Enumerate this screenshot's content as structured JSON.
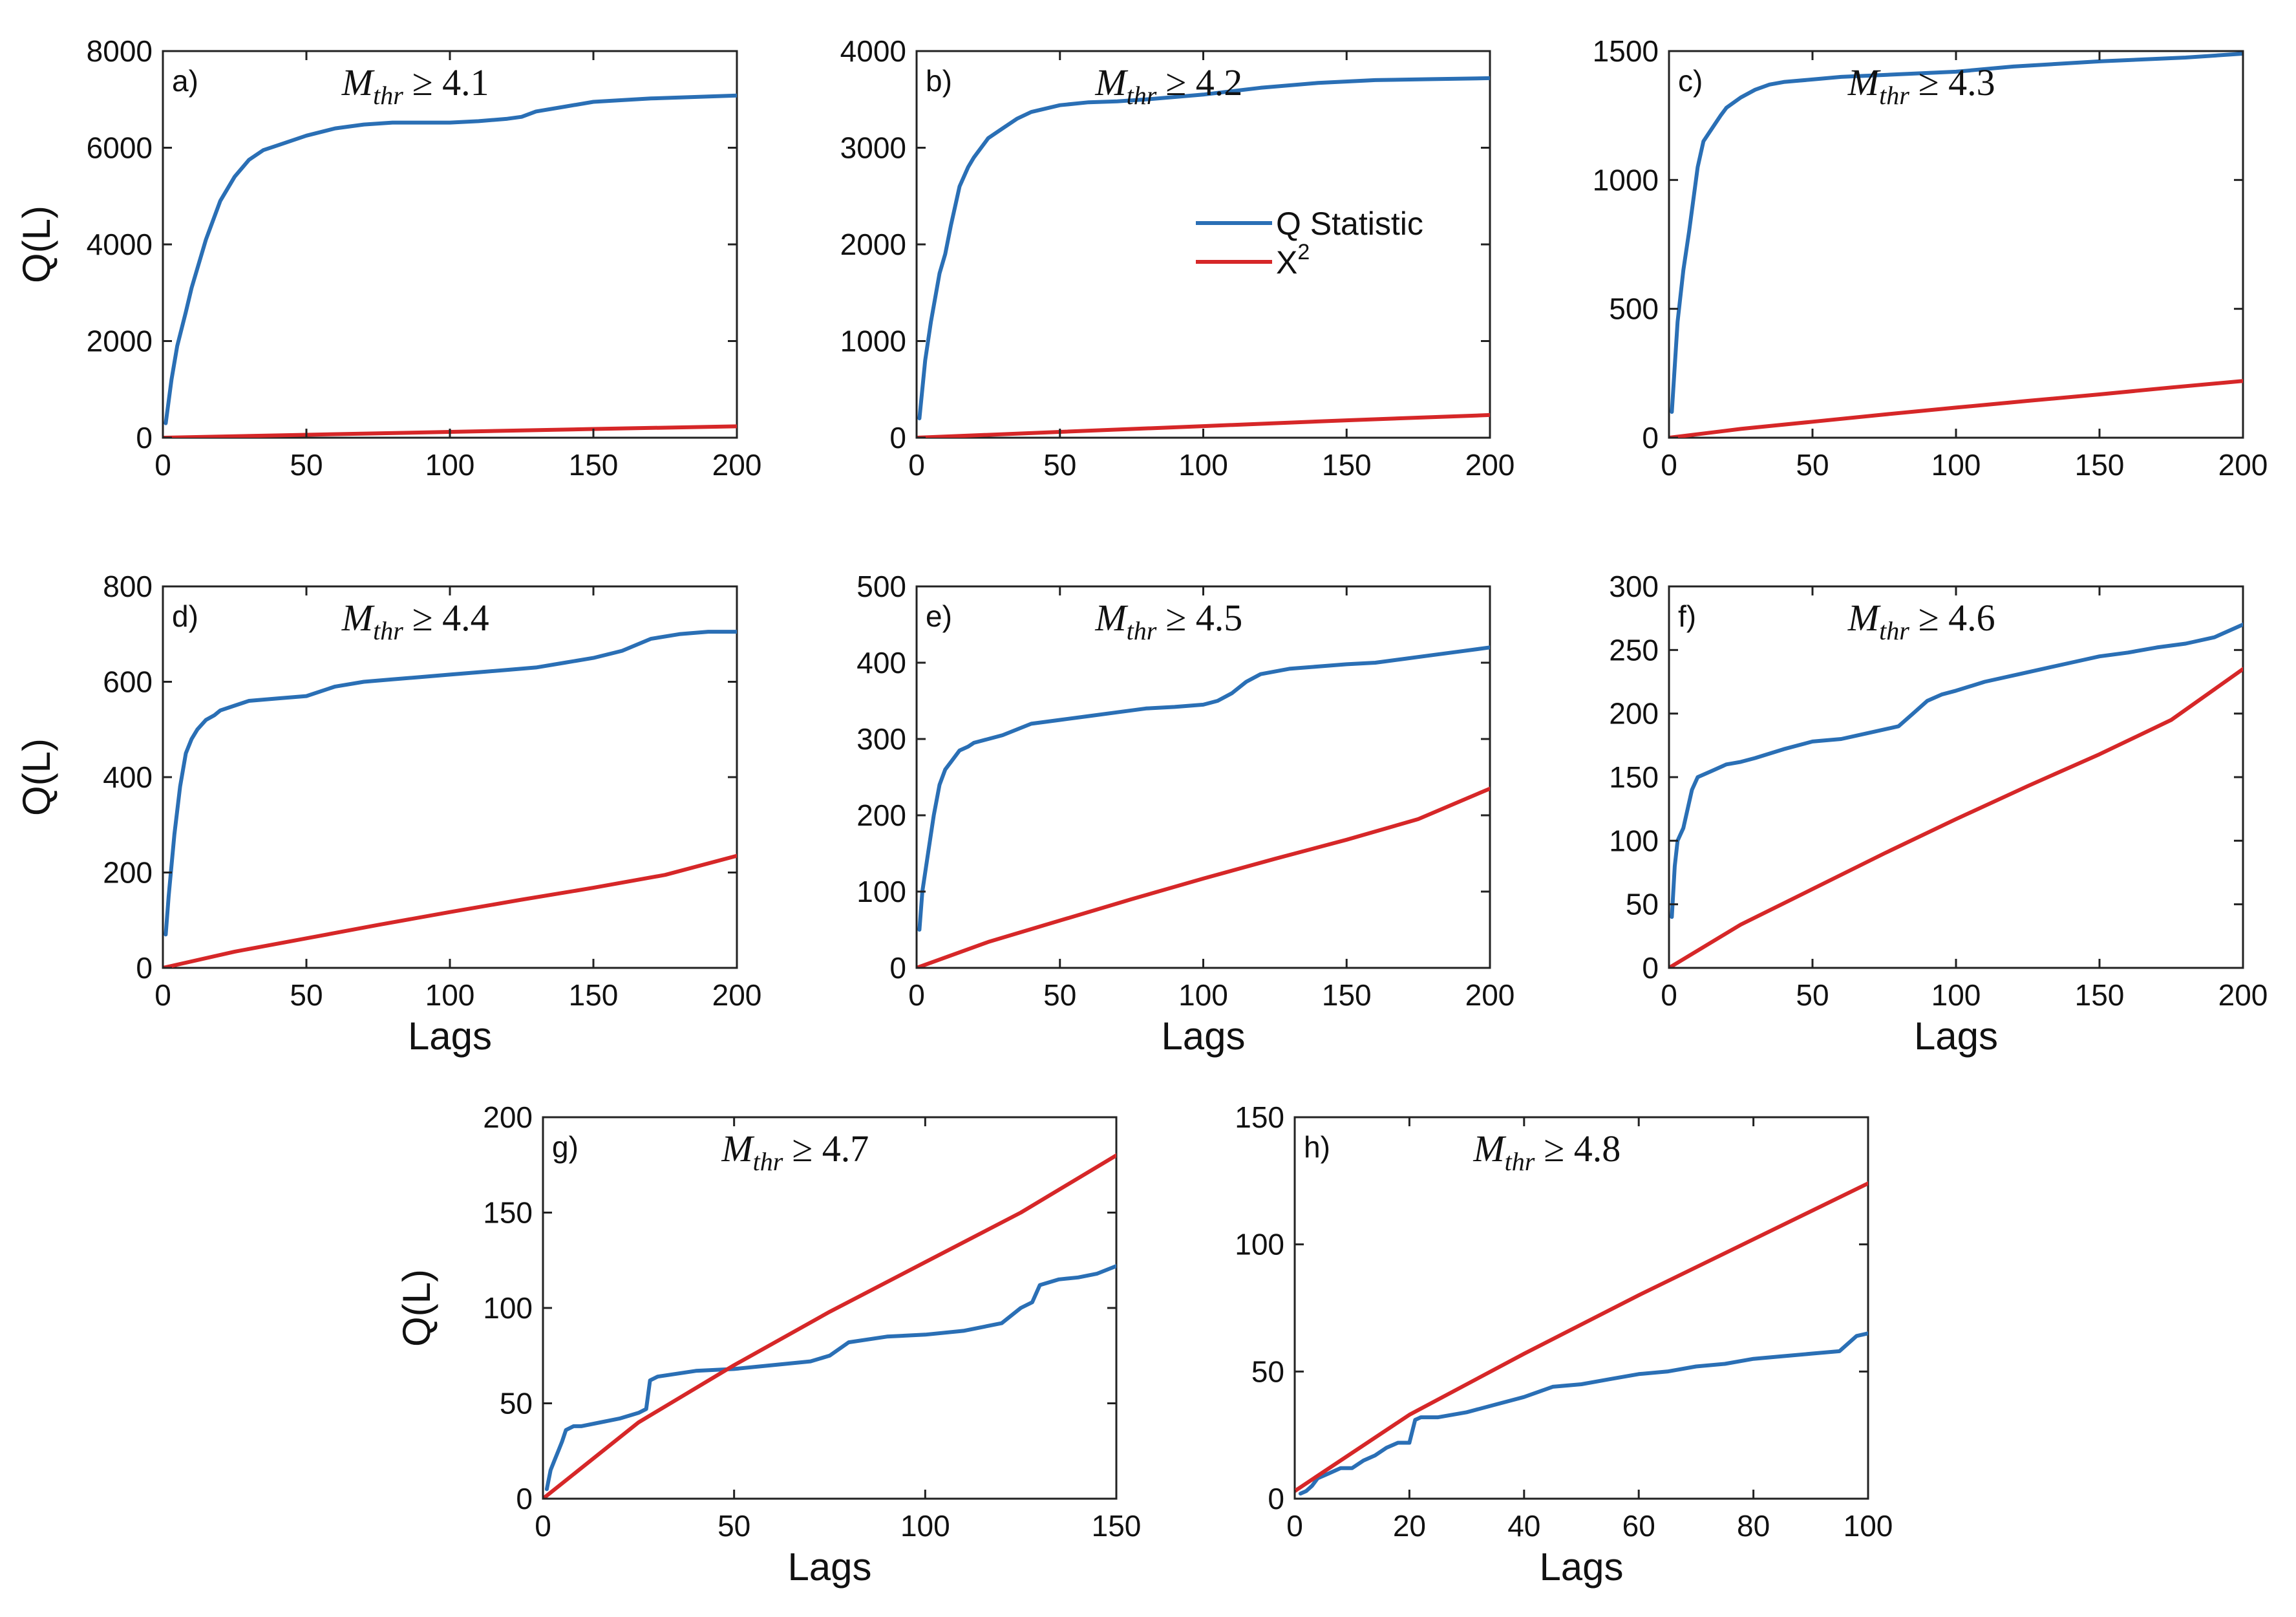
{
  "figure": {
    "colors": {
      "q": "#2a6fb5",
      "chi": "#d62728",
      "axis": "#222222"
    },
    "legend": {
      "q_label": "Q Statistic",
      "chi_label": "X",
      "chi_sup": "2",
      "panel": "b",
      "placement": "center-right"
    }
  },
  "chart_data": [
    {
      "id": "a",
      "type": "line",
      "label": "a)",
      "title": {
        "symbol": "M",
        "sub": "thr",
        "rel": "≥",
        "value": "4.1"
      },
      "xlabel": "",
      "ylabel": "Q(L)",
      "xlim": [
        0,
        200
      ],
      "ylim": [
        0,
        8000
      ],
      "xticks": [
        "0",
        "50",
        "100",
        "150",
        "200"
      ],
      "yticks": [
        "0",
        "2000",
        "4000",
        "6000",
        "8000"
      ],
      "series": [
        {
          "name": "Q Statistic",
          "x": [
            1,
            3,
            5,
            8,
            10,
            15,
            20,
            25,
            30,
            35,
            40,
            50,
            60,
            70,
            80,
            90,
            100,
            110,
            120,
            125,
            130,
            140,
            150,
            170,
            200
          ],
          "y": [
            300,
            1200,
            1900,
            2600,
            3100,
            4100,
            4900,
            5400,
            5750,
            5950,
            6050,
            6250,
            6400,
            6480,
            6520,
            6520,
            6520,
            6550,
            6600,
            6640,
            6750,
            6850,
            6950,
            7020,
            7080
          ]
        },
        {
          "name": "X2",
          "x": [
            0,
            50,
            100,
            150,
            200
          ],
          "y": [
            0,
            60,
            120,
            180,
            235
          ]
        }
      ]
    },
    {
      "id": "b",
      "type": "line",
      "label": "b)",
      "title": {
        "symbol": "M",
        "sub": "thr",
        "rel": "≥",
        "value": "4.2"
      },
      "xlabel": "",
      "ylabel": "",
      "xlim": [
        0,
        200
      ],
      "ylim": [
        0,
        4000
      ],
      "xticks": [
        "0",
        "50",
        "100",
        "150",
        "200"
      ],
      "yticks": [
        "0",
        "1000",
        "2000",
        "3000",
        "4000"
      ],
      "series": [
        {
          "name": "Q Statistic",
          "x": [
            1,
            3,
            5,
            8,
            10,
            12,
            15,
            18,
            20,
            25,
            30,
            35,
            40,
            50,
            60,
            70,
            80,
            100,
            120,
            140,
            160,
            180,
            200
          ],
          "y": [
            200,
            800,
            1200,
            1700,
            1900,
            2200,
            2600,
            2800,
            2900,
            3100,
            3200,
            3300,
            3370,
            3440,
            3470,
            3480,
            3500,
            3550,
            3620,
            3670,
            3700,
            3710,
            3720
          ]
        },
        {
          "name": "X2",
          "x": [
            0,
            50,
            100,
            150,
            200
          ],
          "y": [
            0,
            60,
            120,
            180,
            235
          ]
        }
      ]
    },
    {
      "id": "c",
      "type": "line",
      "label": "c)",
      "title": {
        "symbol": "M",
        "sub": "thr",
        "rel": "≥",
        "value": "4.3"
      },
      "xlabel": "",
      "ylabel": "",
      "xlim": [
        0,
        200
      ],
      "ylim": [
        0,
        1500
      ],
      "xticks": [
        "0",
        "50",
        "100",
        "150",
        "200"
      ],
      "yticks": [
        "0",
        "500",
        "1000",
        "1500"
      ],
      "series": [
        {
          "name": "Q Statistic",
          "x": [
            1,
            3,
            5,
            7,
            10,
            12,
            15,
            18,
            20,
            25,
            30,
            35,
            40,
            50,
            60,
            80,
            100,
            120,
            150,
            180,
            200
          ],
          "y": [
            100,
            450,
            650,
            800,
            1050,
            1150,
            1200,
            1250,
            1280,
            1320,
            1350,
            1370,
            1380,
            1390,
            1400,
            1410,
            1420,
            1440,
            1460,
            1475,
            1490
          ]
        },
        {
          "name": "X2",
          "x": [
            0,
            25,
            50,
            75,
            100,
            125,
            150,
            175,
            200
          ],
          "y": [
            0,
            34,
            62,
            90,
            117,
            143,
            168,
            195,
            220
          ]
        }
      ]
    },
    {
      "id": "d",
      "type": "line",
      "label": "d)",
      "title": {
        "symbol": "M",
        "sub": "thr",
        "rel": "≥",
        "value": "4.4"
      },
      "xlabel": "Lags",
      "ylabel": "Q(L)",
      "xlim": [
        0,
        200
      ],
      "ylim": [
        0,
        800
      ],
      "xticks": [
        "0",
        "50",
        "100",
        "150",
        "200"
      ],
      "yticks": [
        "0",
        "200",
        "400",
        "600",
        "800"
      ],
      "series": [
        {
          "name": "Q Statistic",
          "x": [
            1,
            2,
            4,
            6,
            8,
            10,
            12,
            15,
            18,
            20,
            25,
            30,
            40,
            50,
            60,
            70,
            80,
            90,
            100,
            110,
            120,
            130,
            140,
            150,
            160,
            170,
            180,
            190,
            200
          ],
          "y": [
            70,
            150,
            280,
            380,
            450,
            480,
            500,
            520,
            530,
            540,
            550,
            560,
            565,
            570,
            590,
            600,
            605,
            610,
            615,
            620,
            625,
            630,
            640,
            650,
            665,
            690,
            700,
            705,
            705
          ]
        },
        {
          "name": "X2",
          "x": [
            0,
            25,
            50,
            75,
            100,
            125,
            150,
            175,
            200
          ],
          "y": [
            0,
            34,
            62,
            90,
            117,
            143,
            168,
            195,
            235
          ]
        }
      ]
    },
    {
      "id": "e",
      "type": "line",
      "label": "e)",
      "title": {
        "symbol": "M",
        "sub": "thr",
        "rel": "≥",
        "value": "4.5"
      },
      "xlabel": "Lags",
      "ylabel": "",
      "xlim": [
        0,
        200
      ],
      "ylim": [
        0,
        500
      ],
      "xticks": [
        "0",
        "50",
        "100",
        "150",
        "200"
      ],
      "yticks": [
        "0",
        "100",
        "200",
        "300",
        "400",
        "500"
      ],
      "series": [
        {
          "name": "Q Statistic",
          "x": [
            1,
            2,
            4,
            6,
            8,
            10,
            12,
            15,
            18,
            20,
            25,
            30,
            40,
            50,
            60,
            70,
            80,
            90,
            100,
            105,
            110,
            115,
            120,
            130,
            140,
            150,
            160,
            170,
            180,
            190,
            200
          ],
          "y": [
            50,
            100,
            150,
            200,
            240,
            260,
            270,
            285,
            290,
            295,
            300,
            305,
            320,
            325,
            330,
            335,
            340,
            342,
            345,
            350,
            360,
            375,
            385,
            392,
            395,
            398,
            400,
            405,
            410,
            415,
            420
          ]
        },
        {
          "name": "X2",
          "x": [
            0,
            25,
            50,
            75,
            100,
            125,
            150,
            175,
            200
          ],
          "y": [
            0,
            34,
            62,
            90,
            117,
            143,
            168,
            195,
            235
          ]
        }
      ]
    },
    {
      "id": "f",
      "type": "line",
      "label": "f)",
      "title": {
        "symbol": "M",
        "sub": "thr",
        "rel": "≥",
        "value": "4.6"
      },
      "xlabel": "Lags",
      "ylabel": "",
      "xlim": [
        0,
        200
      ],
      "ylim": [
        0,
        300
      ],
      "xticks": [
        "0",
        "50",
        "100",
        "150",
        "200"
      ],
      "yticks": [
        "0",
        "50",
        "100",
        "150",
        "200",
        "250",
        "300"
      ],
      "series": [
        {
          "name": "Q Statistic",
          "x": [
            1,
            2,
            3,
            5,
            8,
            10,
            15,
            20,
            25,
            30,
            40,
            50,
            60,
            70,
            80,
            85,
            90,
            95,
            100,
            110,
            120,
            130,
            140,
            150,
            160,
            170,
            180,
            190,
            200
          ],
          "y": [
            40,
            80,
            100,
            110,
            140,
            150,
            155,
            160,
            162,
            165,
            172,
            178,
            180,
            185,
            190,
            200,
            210,
            215,
            218,
            225,
            230,
            235,
            240,
            245,
            248,
            252,
            255,
            260,
            270
          ]
        },
        {
          "name": "X2",
          "x": [
            0,
            25,
            50,
            75,
            100,
            125,
            150,
            175,
            200
          ],
          "y": [
            0,
            34,
            62,
            90,
            117,
            143,
            168,
            195,
            235
          ]
        }
      ]
    },
    {
      "id": "g",
      "type": "line",
      "label": "g)",
      "title": {
        "symbol": "M",
        "sub": "thr",
        "rel": "≥",
        "value": "4.7"
      },
      "xlabel": "Lags",
      "ylabel": "Q(L)",
      "xlim": [
        0,
        150
      ],
      "ylim": [
        0,
        200
      ],
      "xticks": [
        "0",
        "50",
        "100",
        "150"
      ],
      "yticks": [
        "0",
        "50",
        "100",
        "150",
        "200"
      ],
      "series": [
        {
          "name": "Q Statistic",
          "x": [
            1,
            2,
            3,
            4,
            5,
            6,
            8,
            10,
            15,
            20,
            25,
            27,
            28,
            30,
            40,
            50,
            60,
            70,
            75,
            80,
            90,
            100,
            110,
            120,
            125,
            128,
            130,
            135,
            140,
            145,
            150
          ],
          "y": [
            5,
            15,
            20,
            25,
            30,
            36,
            38,
            38,
            40,
            42,
            45,
            47,
            62,
            64,
            67,
            68,
            70,
            72,
            75,
            82,
            85,
            86,
            88,
            92,
            100,
            103,
            112,
            115,
            116,
            118,
            122
          ]
        },
        {
          "name": "X2",
          "x": [
            0,
            25,
            50,
            75,
            100,
            125,
            150
          ],
          "y": [
            0,
            40,
            70,
            98,
            124,
            150,
            180
          ]
        }
      ]
    },
    {
      "id": "h",
      "type": "line",
      "label": "h)",
      "title": {
        "symbol": "M",
        "sub": "thr",
        "rel": "≥",
        "value": "4.8"
      },
      "xlabel": "Lags",
      "ylabel": "",
      "xlim": [
        0,
        100
      ],
      "ylim": [
        0,
        150
      ],
      "xticks": [
        "0",
        "20",
        "40",
        "60",
        "80",
        "100"
      ],
      "yticks": [
        "0",
        "50",
        "100",
        "150"
      ],
      "series": [
        {
          "name": "Q Statistic",
          "x": [
            1,
            2,
            3,
            4,
            5,
            6,
            8,
            10,
            12,
            14,
            16,
            18,
            20,
            21,
            22,
            25,
            30,
            35,
            40,
            45,
            50,
            55,
            60,
            65,
            70,
            75,
            80,
            85,
            90,
            95,
            98,
            100
          ],
          "y": [
            2,
            3,
            5,
            8,
            9,
            10,
            12,
            12,
            15,
            17,
            20,
            22,
            22,
            31,
            32,
            32,
            34,
            37,
            40,
            44,
            45,
            47,
            49,
            50,
            52,
            53,
            55,
            56,
            57,
            58,
            64,
            65
          ]
        },
        {
          "name": "X2",
          "x": [
            0,
            20,
            40,
            60,
            80,
            100
          ],
          "y": [
            3,
            33,
            57,
            80,
            102,
            124
          ]
        }
      ]
    }
  ]
}
